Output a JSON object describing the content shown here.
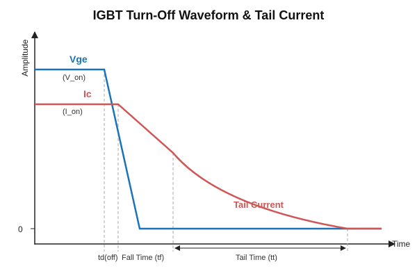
{
  "title": "IGBT Turn-Off Waveform & Tail Current",
  "axes": {
    "ylabel": "Amplitude",
    "xlabel": "Time",
    "zero_label": "0"
  },
  "series": {
    "vge": {
      "label": "Vge",
      "sublabel": "(V_on)",
      "color": "#1a73b8"
    },
    "ic": {
      "label": "Ic",
      "sublabel": "(I_on)",
      "color": "#d05555"
    }
  },
  "annotations": {
    "tail_current": "Tail Current",
    "td_off": "td(off)",
    "fall_time": "Fall Time (tf)",
    "tail_time": "Tail Time (tt)"
  },
  "colors": {
    "axis": "#222222",
    "guide": "#aaaaaa"
  }
}
